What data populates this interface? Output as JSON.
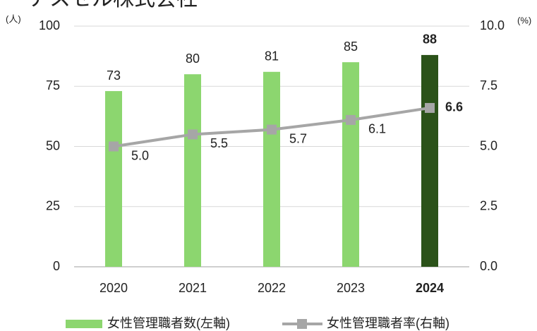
{
  "chart_data": {
    "type": "bar-line",
    "title": "アスセル株式会社",
    "y_unit": "(人)",
    "y2_unit": "(%)",
    "categories": [
      "2020",
      "2021",
      "2022",
      "2023",
      "2024"
    ],
    "emphasis": [
      false,
      false,
      false,
      false,
      true
    ],
    "series": [
      {
        "name": "女性管理職者数(左軸)",
        "type": "bar",
        "color": "#8cd66f",
        "colors": [
          "#8cd66f",
          "#8cd66f",
          "#8cd66f",
          "#8cd66f",
          "#2b5219"
        ],
        "values": [
          73,
          80,
          81,
          85,
          88
        ]
      },
      {
        "name": "女性管理職者率(右軸)",
        "type": "line",
        "axis": "y2",
        "color": "#a6a6a6",
        "values": [
          5.0,
          5.5,
          5.7,
          6.1,
          6.6
        ],
        "value_labels": [
          "5.0",
          "5.5",
          "5.7",
          "6.1",
          "6.6"
        ]
      }
    ],
    "ylim": [
      0,
      100
    ],
    "yticks": [
      0,
      25,
      50,
      75,
      100
    ],
    "y2lim": [
      0,
      10
    ],
    "y2ticks": [
      {
        "value": 0,
        "label": "0.0"
      },
      2.5,
      {
        "value": 5,
        "label": "5.0"
      },
      7.5,
      {
        "value": 10,
        "label": "10.0"
      }
    ],
    "grid": true
  }
}
